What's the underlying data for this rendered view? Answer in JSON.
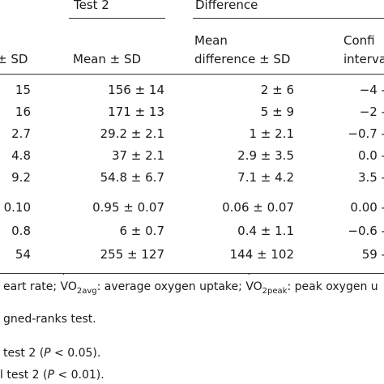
{
  "header": {
    "group_test2": "Test 2",
    "group_difference": "Difference",
    "col1_tail": "± SD",
    "col2": "Mean ± SD",
    "col3_line1": "Mean",
    "col3_line2": "difference ± SD",
    "col4_line1": "Confi",
    "col4_line2": "interva"
  },
  "rows": [
    {
      "c1": "15",
      "c2": "156 ± 14",
      "c3": "2 ± 6",
      "c4": "−4 -"
    },
    {
      "c1": "16",
      "c2": "171 ± 13",
      "c3": "5 ± 9",
      "c4": "−2 -"
    },
    {
      "c1": "2.7",
      "c2": "29.2 ± 2.1",
      "c3": "1 ± 2.1",
      "c4": "−0.7 -"
    },
    {
      "c1": "4.8",
      "c2": "37 ± 2.1",
      "c3": "2.9 ± 3.5",
      "c4": "0.0 -"
    },
    {
      "c1": "9.2",
      "c2": "54.8 ± 6.7",
      "c3": "7.1 ± 4.2",
      "c4": "3.5 -"
    },
    {
      "c1": "0.10",
      "c2": "0.95 ± 0.07",
      "c3": "0.06 ± 0.07",
      "c4": "0.00 -"
    },
    {
      "c1": "0.8",
      "c2": "6 ± 0.7",
      "c3": "0.4 ± 1.1",
      "c4": "−0.6 -"
    },
    {
      "c1": "54",
      "c2": "255 ± 127",
      "c3": "144 ± 102",
      "c4": "59 -"
    }
  ],
  "footnotes": {
    "abbrev": {
      "p1": "eart rate; ",
      "vo2avg_base": "VO",
      "vo2avg_sub": "2avg",
      "p2": ": average oxygen uptake; ",
      "vo2peak_base": "VO",
      "vo2peak_sub": "2peak",
      "p3": ": peak oxygen u"
    },
    "test_line": "gned-ranks test.",
    "sig1_pre": "test 2 (",
    "sig1_p": "P",
    "sig1_post": " < 0.05).",
    "sig2_pre": "l test 2 (",
    "sig2_p": "P",
    "sig2_post": " < 0.01)."
  }
}
